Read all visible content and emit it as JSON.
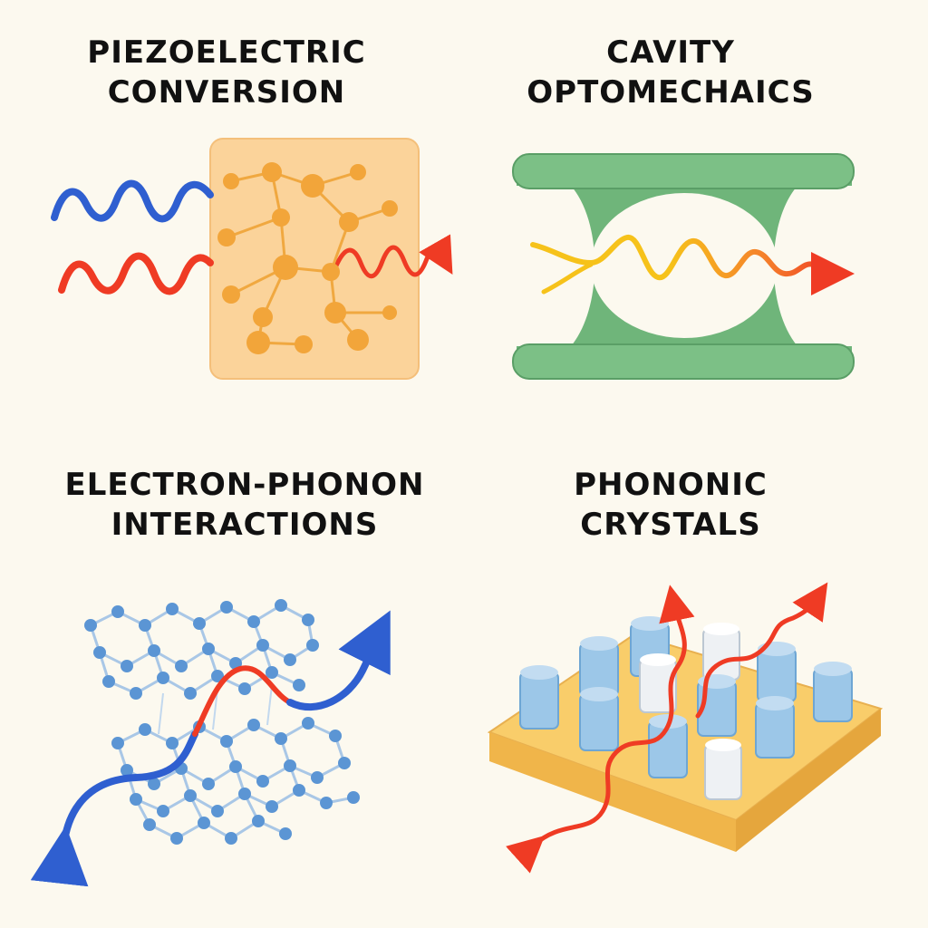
{
  "panels": {
    "piezoelectric": {
      "line1": "PIEZOELECTRIC",
      "line2": "CONVERSION"
    },
    "cavity": {
      "line1": "CAVITY",
      "line2": "OPTOMECHAICS"
    },
    "electron_phonon": {
      "line1": "ELECTRON-PHONON",
      "line2": "INTERACTIONS"
    },
    "phononic": {
      "line1": "PHONONIC",
      "line2": "CRYSTALS"
    }
  },
  "colors": {
    "background": "#fcf9ef",
    "wave_blue": "#2f5fd0",
    "wave_red": "#ef3b24",
    "wave_yellow": "#f6c21a",
    "crystal_block": "#fbd39a",
    "crystal_atom": "#f2a53a",
    "cavity_green": "#6fb57a",
    "lattice_blue": "#5b95d4",
    "pillar_blue": "#9cc7e8",
    "substrate": "#f6c25c"
  }
}
